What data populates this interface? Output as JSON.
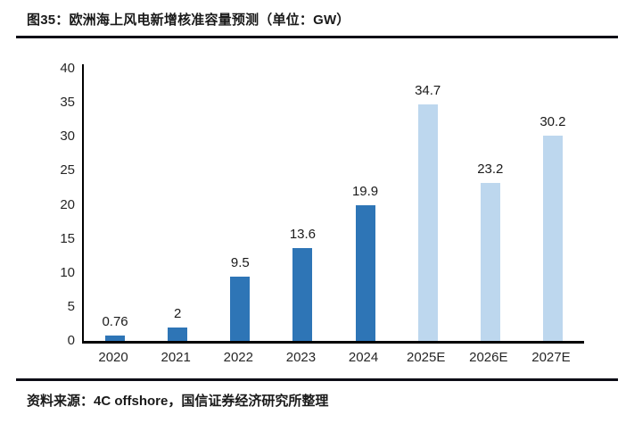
{
  "header": {
    "title": "图35：欧洲海上风电新增核准容量预测（单位：GW）"
  },
  "footer": {
    "source": "资料来源：4C offshore，国信证券经济研究所整理"
  },
  "chart_data": {
    "type": "bar",
    "title": "欧洲海上风电新增核准容量预测",
    "unit": "GW",
    "categories": [
      "2020",
      "2021",
      "2022",
      "2023",
      "2024",
      "2025E",
      "2026E",
      "2027E"
    ],
    "values": [
      0.76,
      2,
      9.5,
      13.6,
      19.9,
      34.7,
      23.2,
      30.2
    ],
    "value_labels": [
      "0.76",
      "2",
      "9.5",
      "13.6",
      "19.9",
      "34.7",
      "23.2",
      "30.2"
    ],
    "bar_colors": [
      "#2E75B6",
      "#2E75B6",
      "#2E75B6",
      "#2E75B6",
      "#2E75B6",
      "#BDD7EE",
      "#BDD7EE",
      "#BDD7EE"
    ],
    "color_actual": "#2E75B6",
    "color_forecast": "#BDD7EE",
    "ylim": [
      0,
      40
    ],
    "y_ticks": [
      0,
      5,
      10,
      15,
      20,
      25,
      30,
      35,
      40
    ],
    "grid": false,
    "legend_position": "none",
    "xlabel": "",
    "ylabel": ""
  }
}
